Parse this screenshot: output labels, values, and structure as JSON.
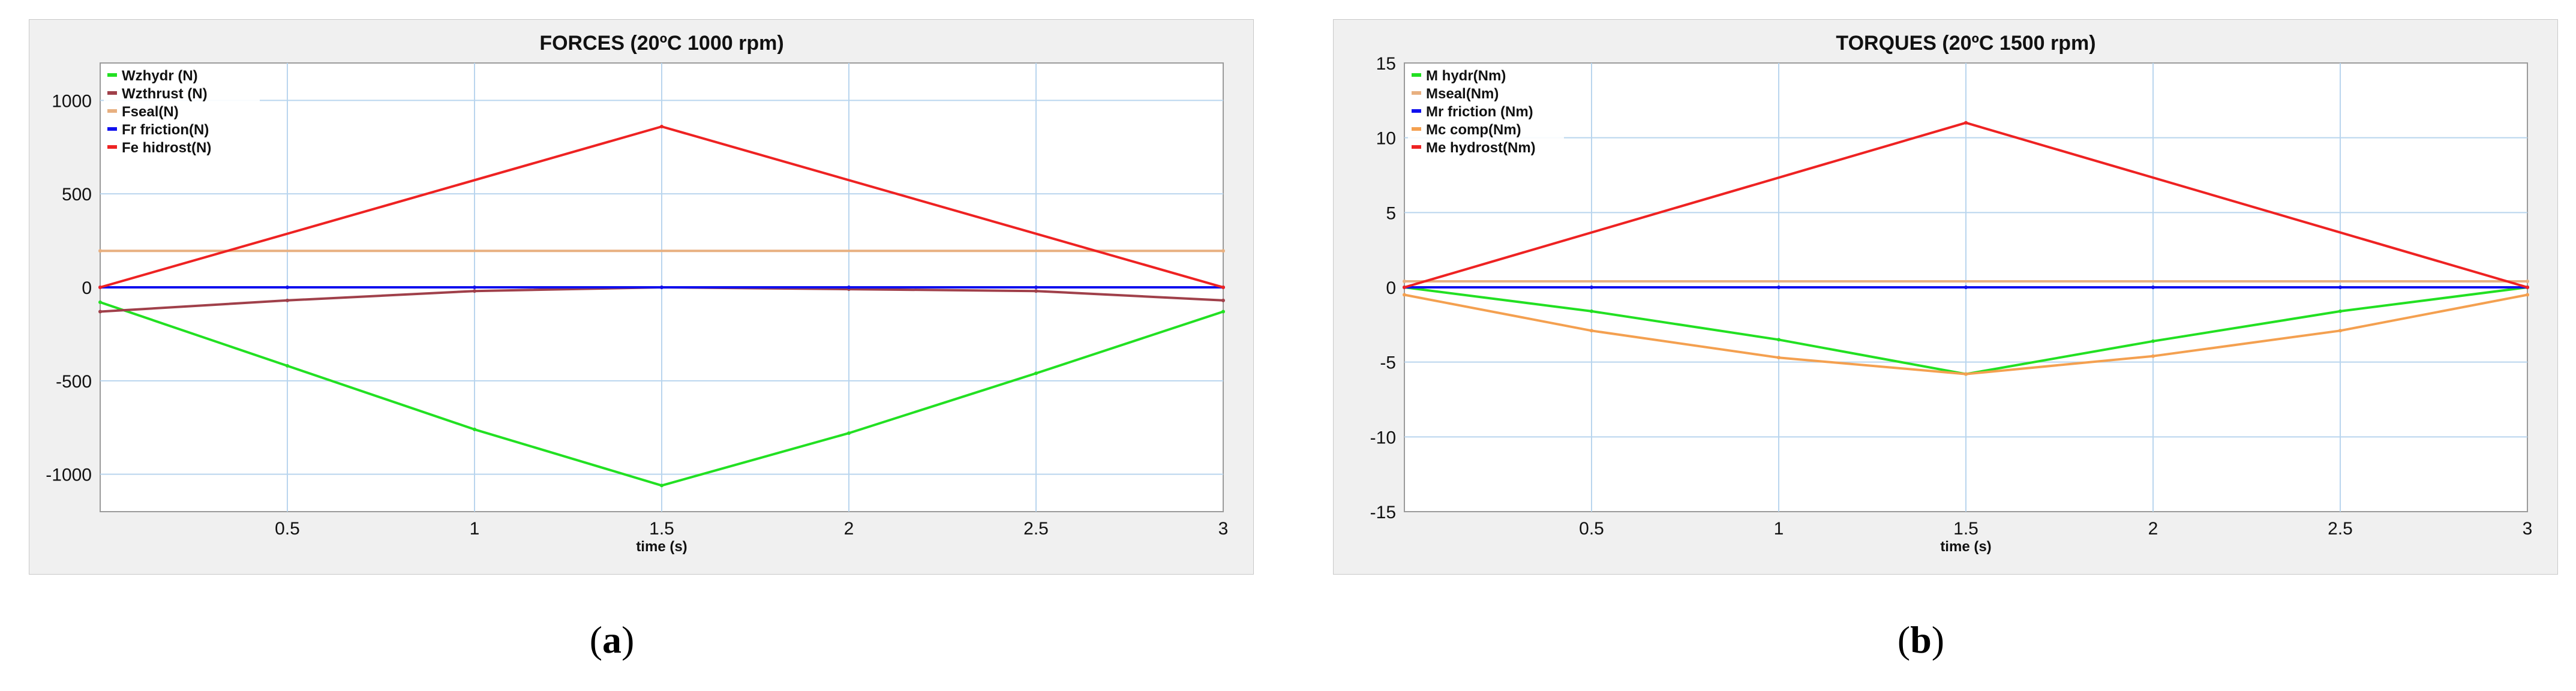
{
  "captions": {
    "a": "a",
    "b": "b"
  },
  "chart_data": [
    {
      "type": "line",
      "title": "FORCES (20ºC 1000 rpm)",
      "xlabel": "time (s)",
      "ylabel": "",
      "xlim": [
        0,
        3
      ],
      "ylim": [
        -1200,
        1200
      ],
      "xticks": [
        0.5,
        1,
        1.5,
        2,
        2.5,
        3
      ],
      "xtick_labels": [
        "0.5",
        "1",
        "1.5",
        "2",
        "2.5",
        "3"
      ],
      "yticks": [
        -1000,
        -500,
        0,
        500,
        1000
      ],
      "ytick_labels": [
        "-1000",
        "-500",
        "0",
        "500",
        "1000"
      ],
      "grid": true,
      "legend_position": "top-left",
      "series": [
        {
          "name": "Wzhydr (N)",
          "color": "#22e022",
          "x": [
            0,
            0.5,
            1,
            1.5,
            2,
            2.5,
            3
          ],
          "y": [
            -80,
            -420,
            -760,
            -1060,
            -780,
            -460,
            -130
          ]
        },
        {
          "name": "Wzthrust (N)",
          "color": "#a0404a",
          "x": [
            0,
            0.5,
            1,
            1.5,
            2,
            2.5,
            3
          ],
          "y": [
            -130,
            -70,
            -20,
            0,
            -10,
            -20,
            -70
          ]
        },
        {
          "name": "Fseal(N)",
          "color": "#e8b080",
          "x": [
            0,
            3
          ],
          "y": [
            195,
            195
          ]
        },
        {
          "name": "Fr friction(N)",
          "color": "#1010ee",
          "x": [
            0,
            0.5,
            1,
            1.5,
            2,
            2.5,
            3
          ],
          "y": [
            0,
            0,
            0,
            0,
            0,
            0,
            0
          ]
        },
        {
          "name": "Fe hidrost(N)",
          "color": "#ee2222",
          "x": [
            0,
            1.5,
            3
          ],
          "y": [
            0,
            860,
            0
          ]
        }
      ]
    },
    {
      "type": "line",
      "title": "TORQUES (20ºC 1500 rpm)",
      "xlabel": "time (s)",
      "ylabel": "",
      "xlim": [
        0,
        3
      ],
      "ylim": [
        -15,
        15
      ],
      "xticks": [
        0.5,
        1,
        1.5,
        2,
        2.5,
        3
      ],
      "xtick_labels": [
        "0.5",
        "1",
        "1.5",
        "2",
        "2.5",
        "3"
      ],
      "yticks": [
        -15,
        -10,
        -5,
        0,
        5,
        10,
        15
      ],
      "ytick_labels": [
        "-15",
        "-10",
        "-5",
        "0",
        "5",
        "10",
        "15"
      ],
      "grid": true,
      "legend_position": "top-left",
      "series": [
        {
          "name": "M hydr(Nm)",
          "color": "#22e022",
          "x": [
            0,
            0.5,
            1,
            1.5,
            2,
            2.5,
            3
          ],
          "y": [
            0,
            -1.6,
            -3.5,
            -5.8,
            -3.6,
            -1.6,
            0
          ]
        },
        {
          "name": "Mseal(Nm)",
          "color": "#e8b080",
          "x": [
            0,
            3
          ],
          "y": [
            0.4,
            0.4
          ]
        },
        {
          "name": "Mr friction (Nm)",
          "color": "#1010ee",
          "x": [
            0,
            0.5,
            1,
            1.5,
            2,
            2.5,
            3
          ],
          "y": [
            0,
            0,
            0,
            0,
            0,
            0,
            0
          ]
        },
        {
          "name": "Mc comp(Nm)",
          "color": "#f4a050",
          "x": [
            0,
            0.5,
            1,
            1.5,
            2,
            2.5,
            3
          ],
          "y": [
            -0.5,
            -2.9,
            -4.7,
            -5.8,
            -4.6,
            -2.9,
            -0.5
          ]
        },
        {
          "name": "Me hydrost(Nm)",
          "color": "#ee2222",
          "x": [
            0,
            1.5,
            3
          ],
          "y": [
            0,
            11,
            0
          ]
        }
      ]
    }
  ]
}
